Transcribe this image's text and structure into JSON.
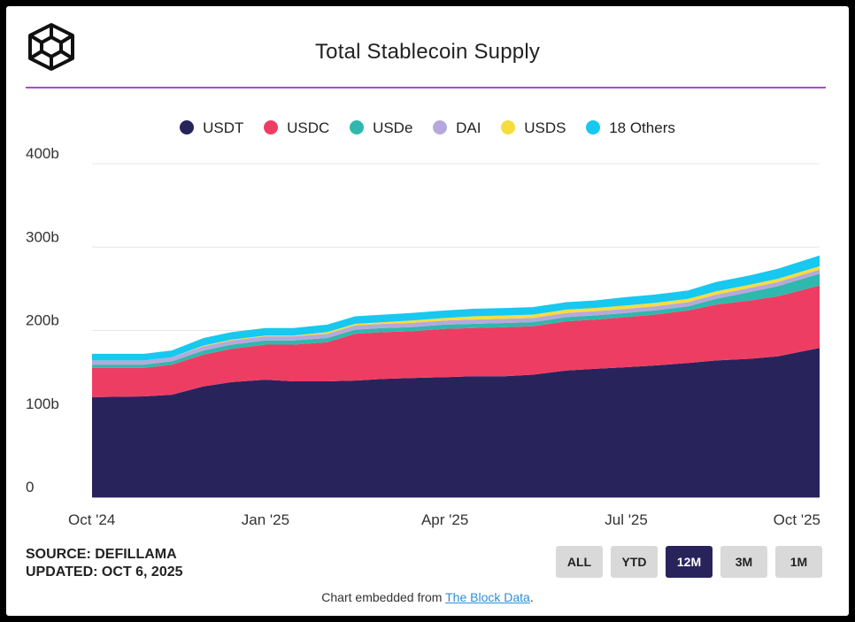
{
  "title": "Total Stablecoin Supply",
  "source_line": "SOURCE: DEFILLAMA",
  "updated_line": "UPDATED: OCT 6, 2025",
  "embed": {
    "prefix": "Chart embedded from ",
    "link": "The Block Data",
    "suffix": "."
  },
  "range_buttons": [
    {
      "label": "ALL",
      "active": false
    },
    {
      "label": "YTD",
      "active": false
    },
    {
      "label": "12M",
      "active": true
    },
    {
      "label": "3M",
      "active": false
    },
    {
      "label": "1M",
      "active": false
    }
  ],
  "icons": {
    "logo": "the-block-cube-logo"
  },
  "chart_data": {
    "type": "area",
    "stacked": true,
    "title": "Total Stablecoin Supply",
    "ylim": [
      0,
      400
    ],
    "yticks": [
      0,
      100,
      200,
      300,
      400
    ],
    "ytick_labels": [
      "0",
      "100b",
      "200b",
      "300b",
      "400b"
    ],
    "xlim": [
      "2024-10-06",
      "2025-10-06"
    ],
    "xticks": [
      "2024-10-01",
      "2025-01-01",
      "2025-04-01",
      "2025-07-01",
      "2025-10-01"
    ],
    "xtick_labels": [
      "Oct '24",
      "Jan '25",
      "Apr '25",
      "Jul '25",
      "Oct '25"
    ],
    "grid": true,
    "legend_position": "top-center",
    "x": [
      "2024-10-06",
      "2024-11-01",
      "2024-11-15",
      "2024-12-01",
      "2024-12-15",
      "2025-01-01",
      "2025-01-15",
      "2025-02-01",
      "2025-02-15",
      "2025-03-01",
      "2025-03-15",
      "2025-04-01",
      "2025-04-15",
      "2025-05-01",
      "2025-05-15",
      "2025-06-01",
      "2025-06-15",
      "2025-07-01",
      "2025-07-15",
      "2025-08-01",
      "2025-08-15",
      "2025-09-01",
      "2025-09-15",
      "2025-10-06"
    ],
    "series": [
      {
        "name": "USDT",
        "color": "#29235c",
        "values": [
          120,
          121,
          123,
          133,
          138,
          141,
          139,
          139,
          140,
          142,
          143,
          144,
          145,
          145,
          147,
          152,
          154,
          156,
          158,
          161,
          164,
          166,
          169,
          179
        ]
      },
      {
        "name": "USDC",
        "color": "#ee3d62",
        "values": [
          35,
          34,
          36,
          38,
          40,
          42,
          44,
          47,
          56,
          56,
          56,
          58,
          58,
          59,
          58,
          59,
          59,
          60,
          61,
          63,
          67,
          70,
          72,
          75
        ]
      },
      {
        "name": "USDe",
        "color": "#2fb8ad",
        "values": [
          4,
          4,
          4,
          5,
          5,
          5,
          5,
          5,
          5,
          5,
          5,
          5,
          5,
          5,
          5,
          5,
          5,
          5,
          5,
          5,
          7,
          10,
          12,
          14
        ]
      },
      {
        "name": "DAI",
        "color": "#b6a8dc",
        "values": [
          5,
          5,
          5,
          5,
          5,
          5,
          5,
          5,
          5,
          5,
          5,
          5,
          5,
          5,
          5,
          5,
          5,
          5,
          5,
          5,
          5,
          5,
          5,
          5
        ]
      },
      {
        "name": "USDS",
        "color": "#f7dc3e",
        "values": [
          0,
          0,
          0,
          1,
          1,
          1,
          1,
          2,
          2,
          2,
          3,
          3,
          4,
          4,
          4,
          4,
          4,
          4,
          4,
          4,
          4,
          4,
          4,
          4
        ]
      },
      {
        "name": "18 Others",
        "color": "#17c8f0",
        "values": [
          8,
          8,
          8,
          9,
          9,
          9,
          9,
          9,
          9,
          9,
          9,
          9,
          9,
          9,
          9,
          9,
          9,
          10,
          10,
          10,
          11,
          11,
          12,
          13
        ]
      }
    ]
  }
}
